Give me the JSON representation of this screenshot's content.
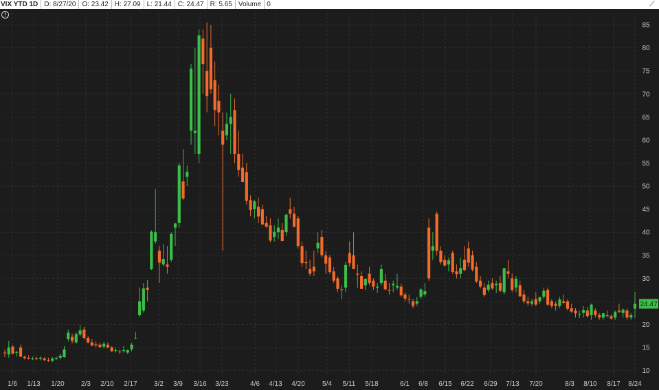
{
  "header": {
    "symbol": "VIX YTD 1D",
    "date": "D: 8/27/20",
    "open": "O: 23.42",
    "high": "H: 27.09",
    "low": "L: 21.44",
    "close": "C: 24.47",
    "range": "R: 5.65",
    "volume_label": "Volume",
    "volume_value": "0"
  },
  "icons": {
    "info": "info-icon",
    "toolbar": "drawing-tool-icon"
  },
  "colors": {
    "up": "#3cbf4a",
    "down": "#f26b2a",
    "background": "#1c1c1c",
    "grid": "#2f2f2f"
  },
  "chart_data": {
    "type": "candlestick",
    "x_tick_labels": [
      "1/6",
      "1/13",
      "1/20",
      "2/3",
      "2/10",
      "2/17",
      "3/2",
      "3/9",
      "3/16",
      "3/23",
      "4/6",
      "4/13",
      "4/20",
      "5/4",
      "5/11",
      "5/18",
      "6/1",
      "6/8",
      "6/15",
      "6/22",
      "6/29",
      "7/13",
      "7/20",
      "8/3",
      "8/10",
      "8/17",
      "8/24"
    ],
    "y_ticks": [
      10,
      15,
      20,
      25,
      30,
      35,
      40,
      45,
      50,
      55,
      60,
      65,
      70,
      75,
      80,
      85
    ],
    "ylim": [
      9.5,
      86.5
    ],
    "last_value": "24.47",
    "grid": true,
    "ohlc": [
      [
        13.9,
        14.5,
        12.9,
        13.8
      ],
      [
        13.5,
        16.4,
        12.8,
        15.0
      ],
      [
        15.2,
        15.5,
        13.6,
        13.6
      ],
      [
        13.9,
        14.3,
        13.0,
        14.0
      ],
      [
        15.0,
        15.6,
        12.9,
        13.0
      ],
      [
        13.0,
        13.2,
        12.4,
        12.7
      ],
      [
        12.7,
        13.3,
        12.4,
        12.5
      ],
      [
        12.5,
        13.0,
        12.3,
        12.6
      ],
      [
        12.6,
        13.0,
        12.3,
        12.5
      ],
      [
        12.5,
        13.1,
        12.2,
        12.7
      ],
      [
        12.6,
        12.9,
        12.0,
        12.3
      ],
      [
        12.3,
        12.8,
        11.9,
        12.1
      ],
      [
        12.1,
        12.9,
        11.8,
        12.6
      ],
      [
        12.5,
        13.0,
        12.3,
        12.7
      ],
      [
        12.8,
        13.6,
        12.4,
        13.2
      ],
      [
        12.9,
        15.3,
        12.8,
        14.6
      ],
      [
        16.8,
        18.9,
        16.3,
        18.2
      ],
      [
        17.3,
        18.0,
        15.9,
        16.4
      ],
      [
        16.1,
        18.3,
        15.8,
        17.9
      ],
      [
        17.8,
        19.9,
        17.4,
        18.7
      ],
      [
        18.9,
        19.5,
        16.7,
        17.1
      ],
      [
        17.1,
        17.5,
        15.9,
        16.1
      ],
      [
        16.1,
        16.8,
        15.3,
        15.4
      ],
      [
        15.7,
        16.3,
        15.0,
        15.5
      ],
      [
        15.6,
        16.0,
        14.9,
        15.1
      ],
      [
        15.2,
        16.2,
        14.8,
        15.8
      ],
      [
        15.6,
        16.1,
        14.8,
        15.0
      ],
      [
        15.0,
        15.3,
        14.0,
        14.2
      ],
      [
        14.4,
        14.9,
        13.9,
        14.4
      ],
      [
        14.1,
        14.5,
        13.6,
        14.0
      ],
      [
        14.3,
        15.3,
        13.9,
        14.4
      ],
      [
        13.9,
        14.6,
        13.6,
        14.4
      ],
      [
        14.6,
        16.0,
        14.2,
        15.6
      ],
      [
        17.0,
        18.4,
        16.8,
        17.1
      ],
      [
        22.0,
        28.0,
        21.6,
        25.0
      ],
      [
        23.0,
        29.0,
        22.5,
        27.8
      ],
      [
        28.0,
        29.6,
        25.0,
        27.5
      ],
      [
        32.0,
        40.4,
        31.8,
        40.1
      ],
      [
        38.0,
        49.4,
        37.5,
        40.0
      ],
      [
        36.0,
        37.0,
        29.0,
        33.4
      ],
      [
        33.0,
        37.5,
        32.6,
        34.2
      ],
      [
        33.0,
        37.0,
        31.0,
        32.5
      ],
      [
        34.0,
        40.0,
        33.6,
        39.6
      ],
      [
        41.0,
        42.0,
        37.0,
        41.9
      ],
      [
        42.0,
        55.0,
        41.0,
        54.5
      ],
      [
        51.0,
        58.0,
        47.0,
        47.3
      ],
      [
        52.0,
        54.5,
        50.0,
        53.1
      ],
      [
        62.0,
        76.5,
        59.0,
        75.5
      ],
      [
        61.5,
        80.0,
        57.0,
        62.0
      ],
      [
        57.0,
        84.0,
        55.0,
        82.7
      ],
      [
        82.0,
        84.0,
        70.0,
        76.5
      ],
      [
        75.0,
        85.5,
        66.0,
        69.5
      ],
      [
        80.0,
        85.0,
        70.0,
        71.0
      ],
      [
        73.0,
        77.0,
        63.0,
        66.5
      ],
      [
        68.5,
        72.0,
        61.0,
        66.0
      ],
      [
        62.0,
        66.0,
        36.0,
        59.0
      ],
      [
        61.0,
        66.0,
        60.0,
        63.5
      ],
      [
        63.5,
        70.0,
        57.0,
        65.0
      ],
      [
        66.5,
        69.0,
        55.0,
        57.0
      ],
      [
        57.0,
        62.0,
        52.0,
        53.5
      ],
      [
        54.0,
        57.0,
        51.0,
        50.9
      ],
      [
        53.0,
        55.0,
        46.0,
        46.8
      ],
      [
        47.0,
        48.0,
        43.5,
        44.8
      ],
      [
        45.0,
        47.0,
        43.0,
        46.7
      ],
      [
        45.5,
        47.5,
        42.0,
        43.4
      ],
      [
        45.0,
        46.0,
        41.5,
        41.7
      ],
      [
        42.0,
        43.5,
        41.0,
        41.2
      ],
      [
        41.5,
        43.0,
        37.8,
        38.2
      ],
      [
        39.0,
        41.5,
        38.0,
        40.1
      ],
      [
        40.0,
        43.0,
        38.5,
        41.0
      ],
      [
        40.5,
        42.0,
        38.0,
        38.1
      ],
      [
        40.0,
        44.0,
        39.2,
        43.8
      ],
      [
        45.0,
        47.5,
        43.0,
        44.0
      ],
      [
        44.0,
        45.5,
        41.0,
        41.2
      ],
      [
        43.0,
        43.5,
        36.5,
        37.0
      ],
      [
        37.0,
        38.0,
        32.5,
        33.3
      ],
      [
        33.5,
        36.0,
        32.0,
        33.3
      ],
      [
        32.0,
        34.0,
        30.5,
        31.0
      ],
      [
        32.5,
        36.0,
        30.5,
        31.5
      ],
      [
        36.5,
        40.0,
        35.5,
        37.7
      ],
      [
        39.0,
        40.5,
        34.5,
        35.0
      ],
      [
        35.0,
        36.0,
        31.0,
        33.2
      ],
      [
        34.5,
        35.0,
        31.0,
        31.4
      ],
      [
        31.5,
        32.5,
        29.0,
        29.5
      ],
      [
        30.0,
        30.5,
        27.0,
        27.7
      ],
      [
        27.5,
        28.5,
        25.5,
        27.6
      ],
      [
        28.0,
        33.5,
        27.0,
        32.9
      ],
      [
        35.5,
        38.0,
        32.5,
        33.3
      ],
      [
        35.0,
        40.0,
        32.0,
        32.0
      ],
      [
        31.0,
        33.0,
        28.0,
        30.8
      ],
      [
        30.5,
        31.5,
        27.8,
        27.7
      ],
      [
        28.5,
        30.0,
        27.5,
        29.9
      ],
      [
        31.0,
        32.5,
        28.5,
        29.0
      ],
      [
        29.5,
        30.0,
        27.5,
        28.2
      ],
      [
        28.0,
        29.0,
        26.8,
        28.2
      ],
      [
        29.0,
        33.0,
        28.5,
        32.0
      ],
      [
        29.5,
        31.0,
        27.5,
        27.6
      ],
      [
        27.5,
        29.0,
        26.5,
        27.3
      ],
      [
        28.5,
        29.5,
        27.0,
        28.8
      ],
      [
        28.0,
        31.0,
        27.5,
        28.4
      ],
      [
        28.2,
        28.8,
        26.0,
        26.3
      ],
      [
        26.5,
        27.0,
        25.0,
        25.6
      ],
      [
        25.5,
        26.5,
        24.5,
        25.4
      ],
      [
        25.0,
        25.5,
        23.5,
        24.0
      ],
      [
        24.5,
        26.0,
        24.0,
        25.0
      ],
      [
        26.0,
        28.0,
        25.5,
        27.6
      ],
      [
        26.5,
        29.0,
        26.0,
        27.2
      ],
      [
        41.0,
        43.0,
        29.5,
        30.0
      ],
      [
        36.0,
        40.0,
        34.0,
        37.0
      ],
      [
        44.0,
        44.5,
        35.0,
        36.0
      ],
      [
        36.0,
        37.0,
        33.0,
        33.5
      ],
      [
        34.0,
        35.0,
        32.5,
        32.8
      ],
      [
        33.0,
        34.5,
        31.5,
        33.9
      ],
      [
        35.5,
        36.0,
        31.0,
        31.4
      ],
      [
        31.5,
        33.0,
        30.0,
        30.9
      ],
      [
        31.0,
        34.5,
        30.0,
        32.2
      ],
      [
        34.0,
        37.0,
        31.5,
        31.8
      ],
      [
        36.5,
        38.0,
        32.5,
        33.4
      ],
      [
        35.0,
        36.0,
        31.5,
        31.9
      ],
      [
        32.5,
        33.5,
        29.0,
        29.3
      ],
      [
        29.5,
        30.5,
        27.8,
        28.2
      ],
      [
        28.0,
        29.0,
        26.0,
        26.4
      ],
      [
        27.5,
        29.5,
        27.0,
        28.6
      ],
      [
        29.0,
        30.0,
        27.5,
        27.8
      ],
      [
        28.5,
        29.5,
        26.8,
        28.8
      ],
      [
        29.0,
        30.5,
        27.0,
        27.3
      ],
      [
        27.0,
        32.0,
        26.5,
        32.2
      ],
      [
        31.5,
        34.0,
        30.0,
        31.0
      ],
      [
        30.0,
        31.0,
        27.0,
        27.5
      ],
      [
        28.0,
        30.5,
        27.0,
        29.9
      ],
      [
        28.5,
        29.5,
        26.0,
        26.1
      ],
      [
        26.5,
        27.5,
        24.5,
        25.0
      ],
      [
        25.0,
        26.0,
        24.0,
        24.6
      ],
      [
        24.5,
        25.5,
        24.0,
        25.0
      ],
      [
        25.5,
        27.0,
        24.0,
        24.3
      ],
      [
        25.0,
        26.0,
        24.5,
        25.9
      ],
      [
        26.0,
        28.0,
        25.5,
        27.3
      ],
      [
        27.5,
        28.0,
        24.0,
        24.3
      ],
      [
        25.0,
        25.5,
        23.5,
        24.0
      ],
      [
        24.5,
        25.0,
        23.0,
        24.0
      ],
      [
        24.0,
        26.0,
        23.5,
        25.4
      ],
      [
        25.0,
        26.5,
        24.5,
        24.7
      ],
      [
        25.0,
        25.5,
        23.0,
        23.4
      ],
      [
        23.5,
        24.5,
        22.5,
        22.8
      ],
      [
        23.0,
        23.5,
        21.5,
        22.4
      ],
      [
        22.2,
        23.0,
        21.4,
        22.3
      ],
      [
        22.5,
        24.0,
        21.5,
        23.1
      ],
      [
        23.0,
        23.8,
        21.5,
        21.8
      ],
      [
        22.0,
        24.5,
        21.0,
        24.3
      ],
      [
        23.0,
        23.5,
        21.5,
        22.0
      ],
      [
        22.0,
        22.5,
        21.0,
        21.5
      ],
      [
        21.5,
        22.5,
        21.0,
        22.4
      ],
      [
        22.0,
        23.0,
        21.5,
        22.0
      ],
      [
        21.8,
        22.2,
        21.0,
        21.3
      ],
      [
        21.5,
        23.0,
        21.0,
        22.7
      ],
      [
        23.0,
        24.5,
        22.5,
        22.7
      ],
      [
        22.5,
        23.5,
        21.5,
        23.2
      ],
      [
        23.0,
        23.5,
        21.0,
        21.5
      ],
      [
        21.5,
        22.5,
        21.0,
        22.0
      ],
      [
        23.42,
        27.09,
        21.44,
        24.47
      ]
    ]
  }
}
